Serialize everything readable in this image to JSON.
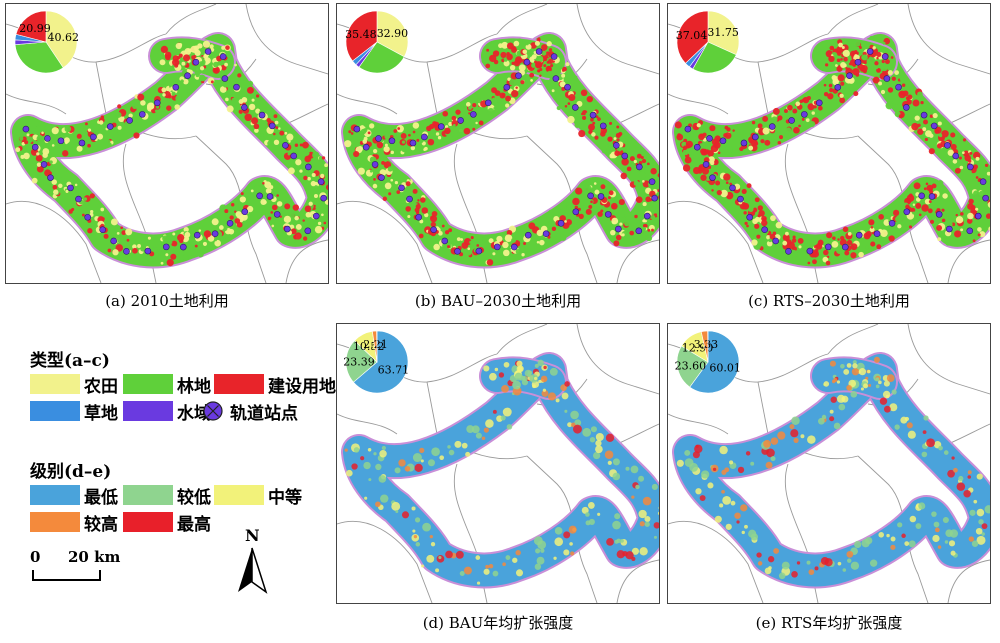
{
  "panels": [
    {
      "id": "a",
      "caption": "(a) 2010土地利用",
      "pie": {
        "slices": [
          {
            "category": "农田",
            "value": 40.62,
            "label": "40.62"
          },
          {
            "category": "林地",
            "value": 33.0,
            "label": ""
          },
          {
            "category": "水域",
            "value": 2.5,
            "label": ""
          },
          {
            "category": "草地",
            "value": 2.9,
            "label": ""
          },
          {
            "category": "建设用地",
            "value": 20.99,
            "label": "20.99"
          }
        ]
      }
    },
    {
      "id": "b",
      "caption": "(b) BAU–2030土地利用",
      "pie": {
        "slices": [
          {
            "category": "农田",
            "value": 32.9,
            "label": "32.90"
          },
          {
            "category": "林地",
            "value": 27.0,
            "label": ""
          },
          {
            "category": "水域",
            "value": 2.0,
            "label": ""
          },
          {
            "category": "草地",
            "value": 2.6,
            "label": ""
          },
          {
            "category": "建设用地",
            "value": 35.48,
            "label": "35.48"
          }
        ]
      }
    },
    {
      "id": "c",
      "caption": "(c) RTS–2030土地利用",
      "pie": {
        "slices": [
          {
            "category": "农田",
            "value": 31.75,
            "label": "31.75"
          },
          {
            "category": "林地",
            "value": 26.4,
            "label": ""
          },
          {
            "category": "水域",
            "value": 2.1,
            "label": ""
          },
          {
            "category": "草地",
            "value": 2.7,
            "label": ""
          },
          {
            "category": "建设用地",
            "value": 37.04,
            "label": "37.04"
          }
        ]
      }
    },
    {
      "id": "d",
      "caption": "(d) BAU年均扩张强度",
      "pie": {
        "slices": [
          {
            "category": "最低",
            "value": 63.71,
            "label": "63.71"
          },
          {
            "category": "较低",
            "value": 23.39,
            "label": "23.39"
          },
          {
            "category": "中等",
            "value": 10.52,
            "label": "10.52"
          },
          {
            "category": "较高",
            "value": 2.21,
            "label": "2.21"
          },
          {
            "category": "最高",
            "value": 0.17,
            "label": ""
          }
        ]
      }
    },
    {
      "id": "e",
      "caption": "(e) RTS年均扩张强度",
      "pie": {
        "slices": [
          {
            "category": "最低",
            "value": 60.01,
            "label": "60.01"
          },
          {
            "category": "较低",
            "value": 23.6,
            "label": "23.60"
          },
          {
            "category": "中等",
            "value": 12.9,
            "label": "12.90"
          },
          {
            "category": "较高",
            "value": 3.33,
            "label": "3.33"
          },
          {
            "category": "最高",
            "value": 0.16,
            "label": ""
          }
        ]
      }
    }
  ],
  "colors": {
    "农田": "#f2f28c",
    "林地": "#5fd03a",
    "建设用地": "#e8242a",
    "草地": "#3a8ee0",
    "水域": "#6a3ae0",
    "最低": "#4aa3db",
    "较低": "#8fd48f",
    "中等": "#f2f27a",
    "较高": "#f48a3c",
    "最高": "#e8202a",
    "station": "#6a3ae0",
    "border": "#c98fd8"
  },
  "legend": {
    "type_title": "类型(a–c)",
    "types": [
      {
        "label": "农田",
        "key": "农田"
      },
      {
        "label": "林地",
        "key": "林地"
      },
      {
        "label": "建设用地",
        "key": "建设用地"
      },
      {
        "label": "草地",
        "key": "草地"
      },
      {
        "label": "水域",
        "key": "水域"
      },
      {
        "label": "轨道站点",
        "key": "station"
      }
    ],
    "level_title": "级别(d–e)",
    "levels": [
      {
        "label": "最低",
        "key": "最低"
      },
      {
        "label": "较低",
        "key": "较低"
      },
      {
        "label": "中等",
        "key": "中等"
      },
      {
        "label": "较高",
        "key": "较高"
      },
      {
        "label": "最高",
        "key": "最高"
      }
    ]
  },
  "scale_bar": {
    "start": "0",
    "end": "20 km"
  },
  "north_arrow": {
    "label": "N",
    "icon": "north-arrow-icon"
  }
}
